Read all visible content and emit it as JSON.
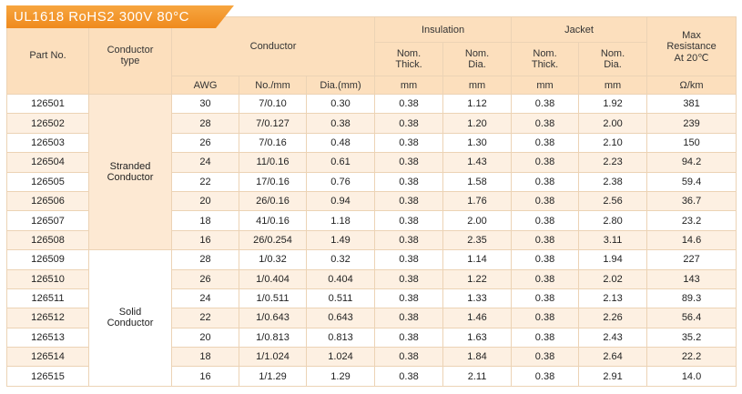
{
  "title": "UL1618 RoHS2 300V 80°C",
  "table": {
    "header": {
      "part_no": "Part No.",
      "conductor_type": "Conductor type",
      "conductor": "Conductor",
      "insulation": "Insulation",
      "jacket": "Jacket",
      "max_resistance": "Max Resistance At 20℃",
      "sub": [
        "Nom. Thick.",
        "Nom. Dia.",
        "Nom. Thick.",
        "Nom. Dia."
      ],
      "units": [
        "AWG",
        "No./mm",
        "Dia.(mm)",
        "mm",
        "mm",
        "mm",
        "mm",
        "Ω/km"
      ]
    },
    "groups": [
      {
        "type": "Stranded Conductor",
        "rows": [
          [
            "126501",
            "30",
            "7/0.10",
            "0.30",
            "0.38",
            "1.12",
            "0.38",
            "1.92",
            "381"
          ],
          [
            "126502",
            "28",
            "7/0.127",
            "0.38",
            "0.38",
            "1.20",
            "0.38",
            "2.00",
            "239"
          ],
          [
            "126503",
            "26",
            "7/0.16",
            "0.48",
            "0.38",
            "1.30",
            "0.38",
            "2.10",
            "150"
          ],
          [
            "126504",
            "24",
            "11/0.16",
            "0.61",
            "0.38",
            "1.43",
            "0.38",
            "2.23",
            "94.2"
          ],
          [
            "126505",
            "22",
            "17/0.16",
            "0.76",
            "0.38",
            "1.58",
            "0.38",
            "2.38",
            "59.4"
          ],
          [
            "126506",
            "20",
            "26/0.16",
            "0.94",
            "0.38",
            "1.76",
            "0.38",
            "2.56",
            "36.7"
          ],
          [
            "126507",
            "18",
            "41/0.16",
            "1.18",
            "0.38",
            "2.00",
            "0.38",
            "2.80",
            "23.2"
          ],
          [
            "126508",
            "16",
            "26/0.254",
            "1.49",
            "0.38",
            "2.35",
            "0.38",
            "3.11",
            "14.6"
          ]
        ]
      },
      {
        "type": "Solid Conductor",
        "rows": [
          [
            "126509",
            "28",
            "1/0.32",
            "0.32",
            "0.38",
            "1.14",
            "0.38",
            "1.94",
            "227"
          ],
          [
            "126510",
            "26",
            "1/0.404",
            "0.404",
            "0.38",
            "1.22",
            "0.38",
            "2.02",
            "143"
          ],
          [
            "126511",
            "24",
            "1/0.511",
            "0.511",
            "0.38",
            "1.33",
            "0.38",
            "2.13",
            "89.3"
          ],
          [
            "126512",
            "22",
            "1/0.643",
            "0.643",
            "0.38",
            "1.46",
            "0.38",
            "2.26",
            "56.4"
          ],
          [
            "126513",
            "20",
            "1/0.813",
            "0.813",
            "0.38",
            "1.63",
            "0.38",
            "2.43",
            "35.2"
          ],
          [
            "126514",
            "18",
            "1/1.024",
            "1.024",
            "0.38",
            "1.84",
            "0.38",
            "2.64",
            "22.2"
          ],
          [
            "126515",
            "16",
            "1/1.29",
            "1.29",
            "0.38",
            "2.11",
            "0.38",
            "2.91",
            "14.0"
          ]
        ]
      }
    ]
  }
}
